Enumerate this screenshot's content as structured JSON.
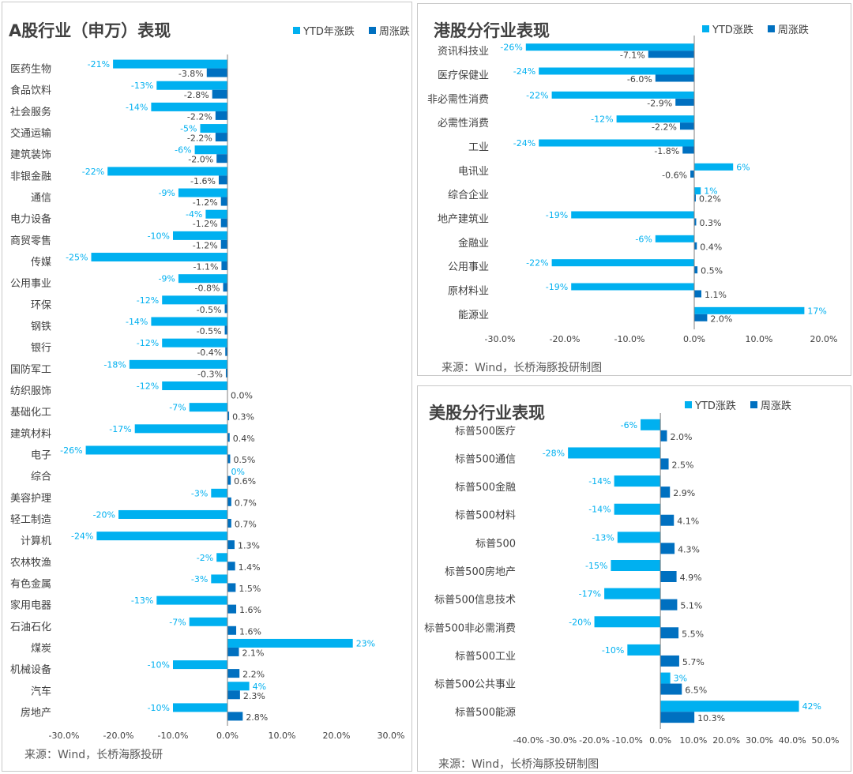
{
  "colors": {
    "ytd": "#00B0F0",
    "week": "#0070C0",
    "axis": "#7F7F7F",
    "text": "#404040"
  },
  "panels": {
    "a_share": {
      "title": "A股行业（申万）表现",
      "legend_ytd": "YTD年涨跌",
      "legend_week": "周涨跌",
      "source": "来源：Wind，长桥海豚投研"
    },
    "hk": {
      "title": "港股分行业表现",
      "legend_ytd": "YTD涨跌",
      "legend_week": "周涨跌",
      "source": "来源：Wind，长桥海豚投研制图"
    },
    "us": {
      "title": "美股分行业表现",
      "legend_ytd": "YTD涨跌",
      "legend_week": "周涨跌",
      "source": "来源：Wind，长桥海豚投研制图"
    }
  },
  "chart_data": [
    {
      "type": "bar",
      "orientation": "horizontal",
      "title": "A股行业（申万）表现",
      "categories": [
        "医药生物",
        "食品饮料",
        "社会服务",
        "交通运输",
        "建筑装饰",
        "非银金融",
        "通信",
        "电力设备",
        "商贸零售",
        "传媒",
        "公用事业",
        "环保",
        "钢铁",
        "银行",
        "国防军工",
        "纺织服饰",
        "基础化工",
        "建筑材料",
        "电子",
        "综合",
        "美容护理",
        "轻工制造",
        "计算机",
        "农林牧渔",
        "有色金属",
        "家用电器",
        "石油石化",
        "煤炭",
        "机械设备",
        "汽车",
        "房地产"
      ],
      "series": [
        {
          "name": "YTD年涨跌",
          "values": [
            -21,
            -13,
            -14,
            -5,
            -6,
            -22,
            -9,
            -4,
            -10,
            -25,
            -9,
            -12,
            -14,
            -12,
            -18,
            -12,
            -7,
            -17,
            -26,
            0,
            -3,
            -20,
            -24,
            -2,
            -3,
            -13,
            -7,
            23,
            -10,
            4,
            -10
          ],
          "labels": [
            "-21%",
            "-13%",
            "-14%",
            "-5%",
            "-6%",
            "-22%",
            "-9%",
            "-4%",
            "-10%",
            "-25%",
            "-9%",
            "-12%",
            "-14%",
            "-12%",
            "-18%",
            "-12%",
            "-7%",
            "-17%",
            "-26%",
            "0%",
            "-3%",
            "-20%",
            "-24%",
            "-2%",
            "-3%",
            "-13%",
            "-7%",
            "23%",
            "-10%",
            "4%",
            "-10%"
          ]
        },
        {
          "name": "周涨跌",
          "values": [
            -3.8,
            -2.8,
            -2.2,
            -2.2,
            -2.0,
            -1.6,
            -1.2,
            -1.2,
            -1.2,
            -1.1,
            -0.8,
            -0.5,
            -0.5,
            -0.4,
            -0.3,
            0.0,
            0.3,
            0.4,
            0.5,
            0.6,
            0.7,
            0.7,
            1.3,
            1.4,
            1.5,
            1.6,
            1.6,
            2.1,
            2.2,
            2.3,
            2.8
          ],
          "labels": [
            "-3.8%",
            "-2.8%",
            "-2.2%",
            "-2.2%",
            "-2.0%",
            "-1.6%",
            "-1.2%",
            "-1.2%",
            "-1.2%",
            "-1.1%",
            "-0.8%",
            "-0.5%",
            "-0.5%",
            "-0.4%",
            "-0.3%",
            "0.0%",
            "0.3%",
            "0.4%",
            "0.5%",
            "0.6%",
            "0.7%",
            "0.7%",
            "1.3%",
            "1.4%",
            "1.5%",
            "1.6%",
            "1.6%",
            "2.1%",
            "2.2%",
            "2.3%",
            "2.8%"
          ]
        }
      ],
      "xlim": [
        -30,
        30
      ],
      "xticks": [
        "-30.0%",
        "-20.0%",
        "-10.0%",
        "0.0%",
        "10.0%",
        "20.0%",
        "30.0%"
      ],
      "legend": "top-right"
    },
    {
      "type": "bar",
      "orientation": "horizontal",
      "title": "港股分行业表现",
      "categories": [
        "资讯科技业",
        "医疗保健业",
        "非必需性消费",
        "必需性消费",
        "工业",
        "电讯业",
        "综合企业",
        "地产建筑业",
        "金融业",
        "公用事业",
        "原材料业",
        "能源业"
      ],
      "series": [
        {
          "name": "YTD涨跌",
          "values": [
            -26,
            -24,
            -22,
            -12,
            -24,
            6,
            1,
            -19,
            -6,
            -22,
            -19,
            17
          ],
          "labels": [
            "-26%",
            "-24%",
            "-22%",
            "-12%",
            "-24%",
            "6%",
            "1%",
            "-19%",
            "-6%",
            "-22%",
            "-19%",
            "17%"
          ]
        },
        {
          "name": "周涨跌",
          "values": [
            -7.1,
            -6.0,
            -2.9,
            -2.2,
            -1.8,
            -0.6,
            0.2,
            0.3,
            0.4,
            0.5,
            1.1,
            2.0
          ],
          "labels": [
            "-7.1%",
            "-6.0%",
            "-2.9%",
            "-2.2%",
            "-1.8%",
            "-0.6%",
            "0.2%",
            "0.3%",
            "0.4%",
            "0.5%",
            "1.1%",
            "2.0%"
          ]
        }
      ],
      "xlim": [
        -30,
        20
      ],
      "xticks": [
        "-30.0%",
        "-20.0%",
        "-10.0%",
        "0.0%",
        "10.0%",
        "20.0%"
      ],
      "legend": "top-right"
    },
    {
      "type": "bar",
      "orientation": "horizontal",
      "title": "美股分行业表现",
      "categories": [
        "标普500医疗",
        "标普500通信",
        "标普500金融",
        "标普500材料",
        "标普500",
        "标普500房地产",
        "标普500信息技术",
        "标普500非必需消费",
        "标普500工业",
        "标普500公共事业",
        "标普500能源"
      ],
      "series": [
        {
          "name": "YTD涨跌",
          "values": [
            -6,
            -28,
            -14,
            -14,
            -13,
            -15,
            -17,
            -20,
            -10,
            3,
            42
          ],
          "labels": [
            "-6%",
            "-28%",
            "-14%",
            "-14%",
            "-13%",
            "-15%",
            "-17%",
            "-20%",
            "-10%",
            "3%",
            "42%"
          ]
        },
        {
          "name": "周涨跌",
          "values": [
            2.0,
            2.5,
            2.9,
            4.1,
            4.3,
            4.9,
            5.1,
            5.5,
            5.7,
            6.5,
            10.3
          ],
          "labels": [
            "2.0%",
            "2.5%",
            "2.9%",
            "4.1%",
            "4.3%",
            "4.9%",
            "5.1%",
            "5.5%",
            "5.7%",
            "6.5%",
            "10.3%"
          ]
        }
      ],
      "xlim": [
        -40,
        50
      ],
      "xticks": [
        "-40.0%",
        "-30.0%",
        "-20.0%",
        "-10.0%",
        "0.0%",
        "10.0%",
        "20.0%",
        "30.0%",
        "40.0%",
        "50.0%"
      ],
      "legend": "top-right"
    }
  ]
}
